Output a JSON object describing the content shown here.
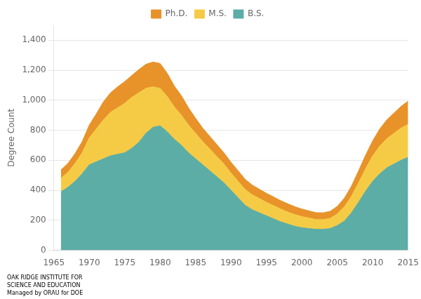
{
  "chart_data": {
    "type": "area",
    "stacked": true,
    "ylabel": "Degree Count",
    "x": [
      1966,
      1967,
      1968,
      1969,
      1970,
      1971,
      1972,
      1973,
      1974,
      1975,
      1976,
      1977,
      1978,
      1979,
      1980,
      1981,
      1982,
      1983,
      1984,
      1985,
      1986,
      1987,
      1988,
      1989,
      1990,
      1991,
      1992,
      1993,
      1994,
      1995,
      1996,
      1997,
      1998,
      1999,
      2000,
      2001,
      2002,
      2003,
      2004,
      2005,
      2006,
      2007,
      2008,
      2009,
      2010,
      2011,
      2012,
      2013,
      2014,
      2015
    ],
    "series": [
      {
        "name": "B.S.",
        "color": "#5BADA6",
        "values": [
          390,
          420,
          460,
          510,
          570,
          590,
          610,
          630,
          640,
          650,
          680,
          720,
          780,
          820,
          830,
          790,
          740,
          700,
          650,
          610,
          570,
          530,
          490,
          450,
          400,
          350,
          300,
          270,
          250,
          230,
          210,
          190,
          175,
          160,
          150,
          145,
          140,
          140,
          145,
          165,
          195,
          250,
          320,
          395,
          460,
          510,
          550,
          575,
          600,
          620
        ]
      },
      {
        "name": "M.S.",
        "color": "#F5CB45",
        "values": [
          90,
          100,
          120,
          140,
          180,
          220,
          260,
          290,
          310,
          330,
          340,
          330,
          300,
          270,
          250,
          235,
          215,
          200,
          185,
          170,
          155,
          145,
          135,
          125,
          115,
          110,
          105,
          100,
          95,
          90,
          88,
          85,
          80,
          78,
          75,
          70,
          65,
          65,
          68,
          78,
          95,
          110,
          130,
          150,
          170,
          185,
          195,
          205,
          215,
          220
        ]
      },
      {
        "name": "Ph.D.",
        "color": "#E8922A",
        "values": [
          55,
          60,
          65,
          75,
          85,
          100,
          120,
          130,
          140,
          145,
          145,
          155,
          160,
          165,
          165,
          155,
          140,
          130,
          115,
          100,
          90,
          85,
          80,
          75,
          72,
          70,
          68,
          65,
          62,
          60,
          58,
          56,
          55,
          53,
          50,
          48,
          46,
          45,
          47,
          50,
          58,
          68,
          80,
          90,
          100,
          115,
          125,
          135,
          145,
          155
        ]
      }
    ],
    "xlim": [
      1965,
      2015
    ],
    "xticks": [
      1965,
      1970,
      1975,
      1980,
      1985,
      1990,
      1995,
      2000,
      2005,
      2010,
      2015
    ],
    "ylim": [
      0,
      1500
    ],
    "yticks": [
      0,
      200,
      400,
      600,
      800,
      {
        "value": 1000,
        "label": "1,000"
      },
      {
        "value": 1200,
        "label": "1,200"
      },
      {
        "value": 1400,
        "label": "1,400"
      }
    ],
    "grid": true,
    "legend": "top",
    "annotations": [
      "OAK RIDGE INSTITUTE FOR\nSCIENCE AND EDUCATION\nManaged by ORAU for DOE"
    ]
  }
}
